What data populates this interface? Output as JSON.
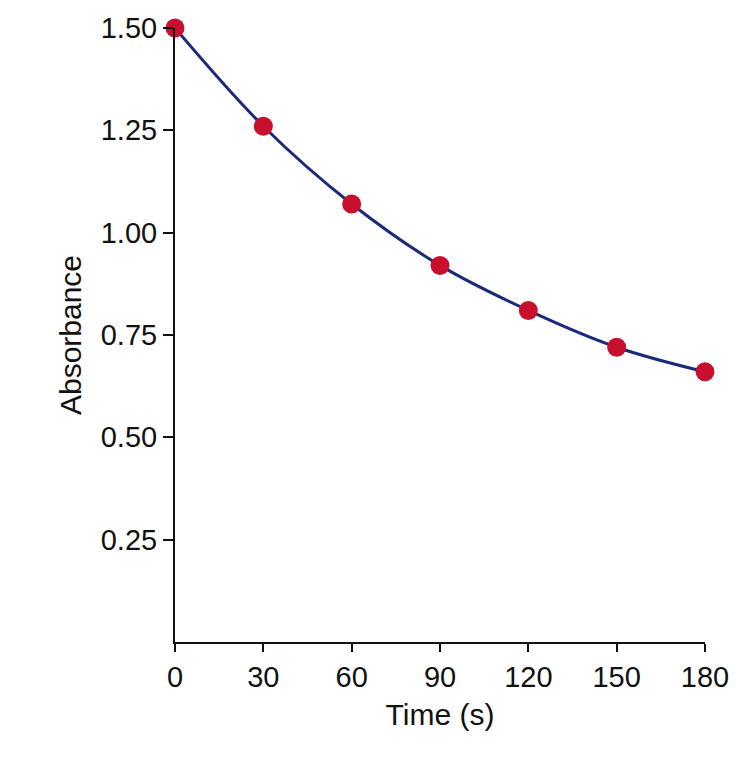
{
  "chart_data": {
    "type": "scatter",
    "x_label": "Time (s)",
    "y_label": "Absorbance",
    "x": [
      0,
      30,
      60,
      90,
      120,
      150,
      180
    ],
    "values": [
      1.5,
      1.26,
      1.07,
      0.92,
      0.81,
      0.72,
      0.66
    ],
    "color": "#c8102e",
    "marker": "circle",
    "line_style": "smooth",
    "xlim": [
      0,
      180
    ],
    "xticks": [
      0,
      30,
      60,
      90,
      120,
      150,
      180
    ],
    "ylim": [
      0,
      1.5
    ],
    "yticks": [
      0.25,
      {
        "value": 0.5,
        "label": "0.50"
      },
      0.75,
      {
        "value": 1,
        "label": "1.00"
      },
      1.25,
      {
        "value": 1.5,
        "label": "1.50"
      }
    ],
    "grid": false
  }
}
